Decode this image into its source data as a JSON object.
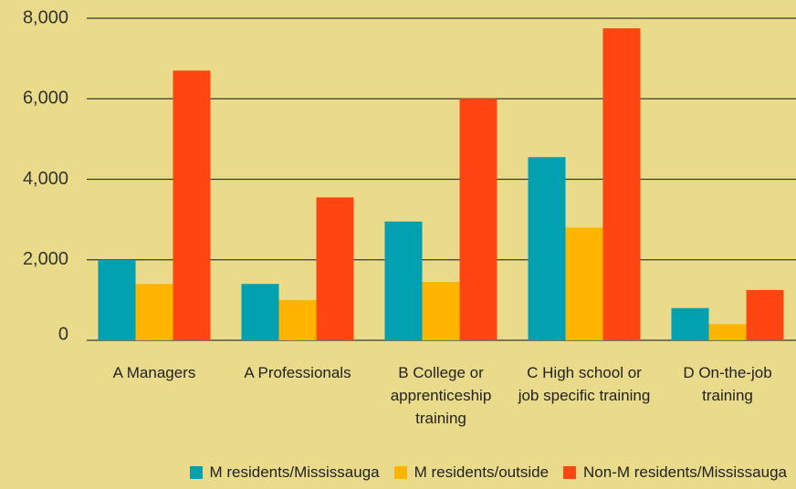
{
  "chart_data": {
    "type": "bar",
    "categories": [
      "A Managers",
      "A Professionals",
      "B College or apprenticeship training",
      "C High school or job specific training",
      "D On-the-job training"
    ],
    "series": [
      {
        "name": "M residents/Mississauga",
        "color": "#00a0b0",
        "values": [
          2000,
          1400,
          2950,
          4550,
          800
        ]
      },
      {
        "name": "M residents/outside",
        "color": "#ffb400",
        "values": [
          1400,
          1000,
          1450,
          2800,
          400
        ]
      },
      {
        "name": "Non-M residents/Mississauga",
        "color": "#ff4612",
        "values": [
          6700,
          3550,
          6000,
          7750,
          1250
        ]
      }
    ],
    "ylim": [
      0,
      8000
    ],
    "yticks": [
      0,
      {
        "value": 2000,
        "label": "2,000"
      },
      {
        "value": 4000,
        "label": "4,000"
      },
      {
        "value": 6000,
        "label": "6,000"
      },
      {
        "value": 8000,
        "label": "8,000"
      }
    ],
    "grid": true,
    "legend": "bottom"
  }
}
